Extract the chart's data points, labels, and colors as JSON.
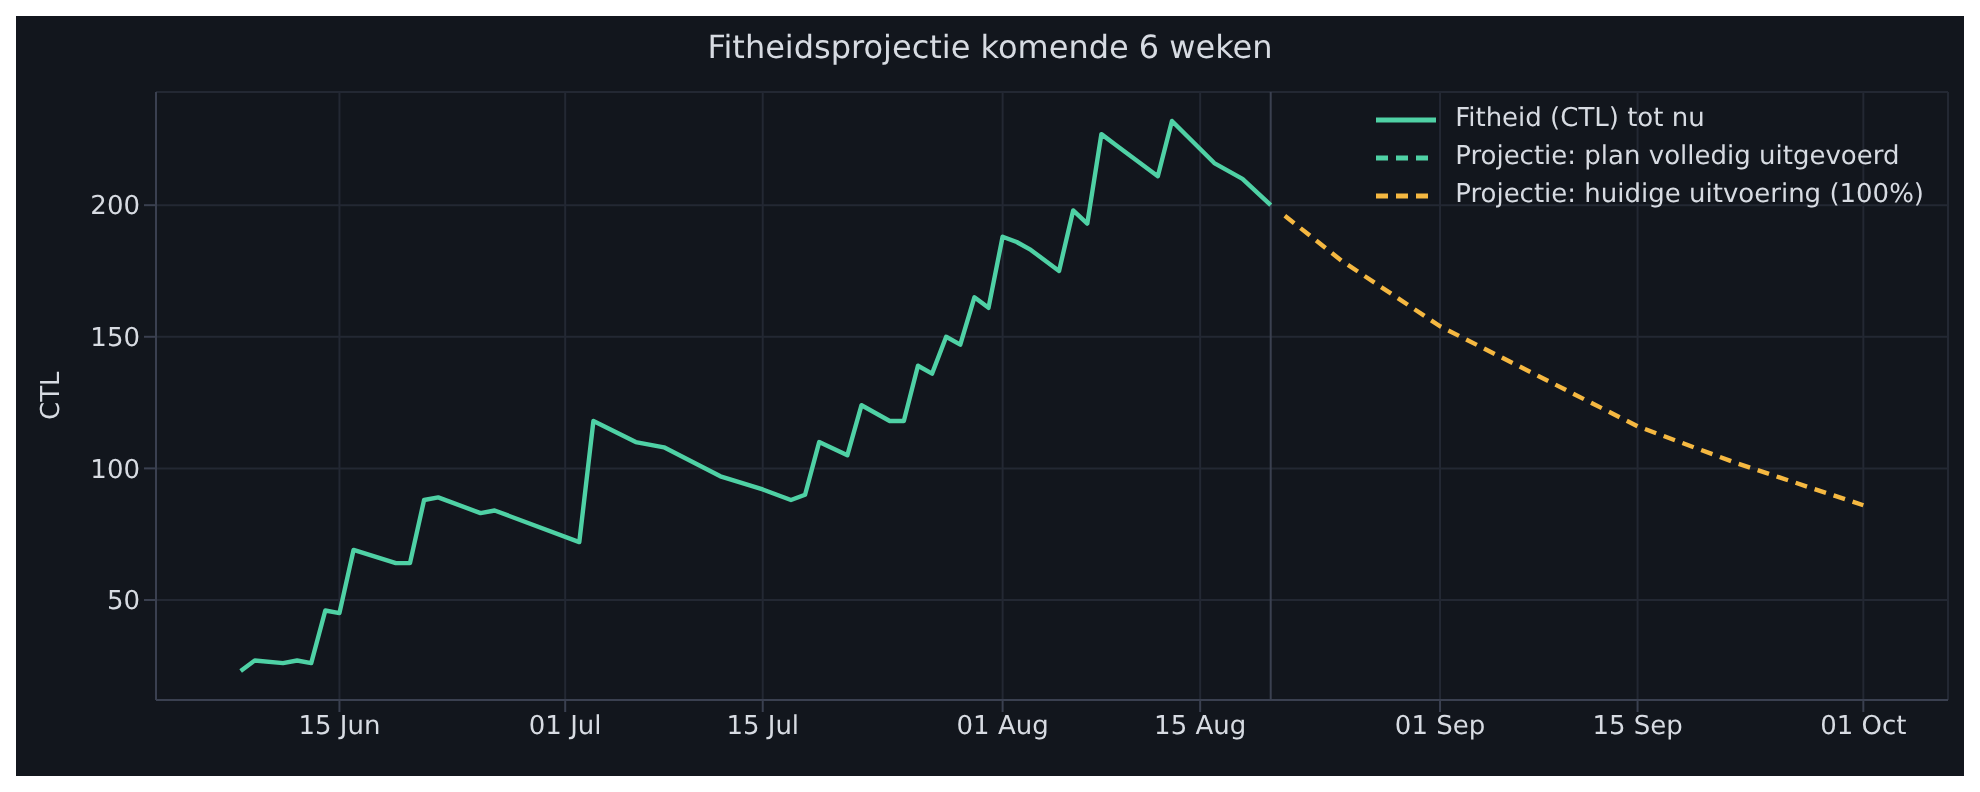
{
  "chart_data": {
    "type": "line",
    "title": "Fitheidsprojectie komende 6 weken",
    "ylabel": "CTL",
    "xlim": [
      "--06-02",
      "--10-07"
    ],
    "xticks": [
      {
        "value": "--06-15",
        "label": "15 Jun"
      },
      {
        "value": "--07-01",
        "label": "01 Jul"
      },
      {
        "value": "--07-15",
        "label": "15 Jul"
      },
      {
        "value": "--08-01",
        "label": "01 Aug"
      },
      {
        "value": "--08-15",
        "label": "15 Aug"
      },
      {
        "value": "--09-01",
        "label": "01 Sep"
      },
      {
        "value": "--09-15",
        "label": "15 Sep"
      },
      {
        "value": "--10-01",
        "label": "01 Oct"
      }
    ],
    "ylim": [
      12,
      243
    ],
    "yticks": [
      50,
      100,
      150,
      200
    ],
    "grid": true,
    "legend": "top right",
    "ref_lines": [
      {
        "axis": "x",
        "value": "--08-20",
        "color": "#3a4050"
      }
    ],
    "series": [
      {
        "name": "Fitheid (CTL) tot nu",
        "color": "#4fd1a5",
        "line_style": "solid",
        "x": [
          "--06-08",
          "--06-09",
          "--06-11",
          "--06-12",
          "--06-13",
          "--06-14",
          "--06-15",
          "--06-16",
          "--06-19",
          "--06-20",
          "--06-21",
          "--06-22",
          "--06-25",
          "--06-26",
          "--07-02",
          "--07-03",
          "--07-06",
          "--07-08",
          "--07-12",
          "--07-15",
          "--07-17",
          "--07-18",
          "--07-19",
          "--07-21",
          "--07-22",
          "--07-24",
          "--07-25",
          "--07-26",
          "--07-27",
          "--07-28",
          "--07-29",
          "--07-30",
          "--07-31",
          "--08-01",
          "--08-02",
          "--08-03",
          "--08-05",
          "--08-06",
          "--08-07",
          "--08-08",
          "--08-09",
          "--08-10",
          "--08-12",
          "--08-13",
          "--08-16",
          "--08-18",
          "--08-20"
        ],
        "values": [
          23,
          27,
          26,
          27,
          26,
          46,
          45,
          69,
          64,
          64,
          88,
          89,
          83,
          84,
          72,
          118,
          110,
          108,
          97,
          92,
          88,
          90,
          110,
          105,
          124,
          118,
          118,
          139,
          136,
          150,
          147,
          165,
          161,
          188,
          186,
          183,
          175,
          198,
          193,
          227,
          223,
          219,
          211,
          232,
          216,
          210,
          200
        ]
      },
      {
        "name": "Projectie: plan volledig uitgevoerd",
        "color": "#4fd1a5",
        "line_style": "dashed"
      },
      {
        "name": "Projectie: huidige uitvoering (100%)",
        "color": "#f5b841",
        "line_style": "dashed",
        "x": [
          "--08-21",
          "--08-25",
          "--09-01",
          "--09-08",
          "--09-15",
          "--09-22",
          "--10-01"
        ],
        "values": [
          196,
          179,
          154,
          135,
          116,
          102,
          86
        ]
      }
    ]
  }
}
